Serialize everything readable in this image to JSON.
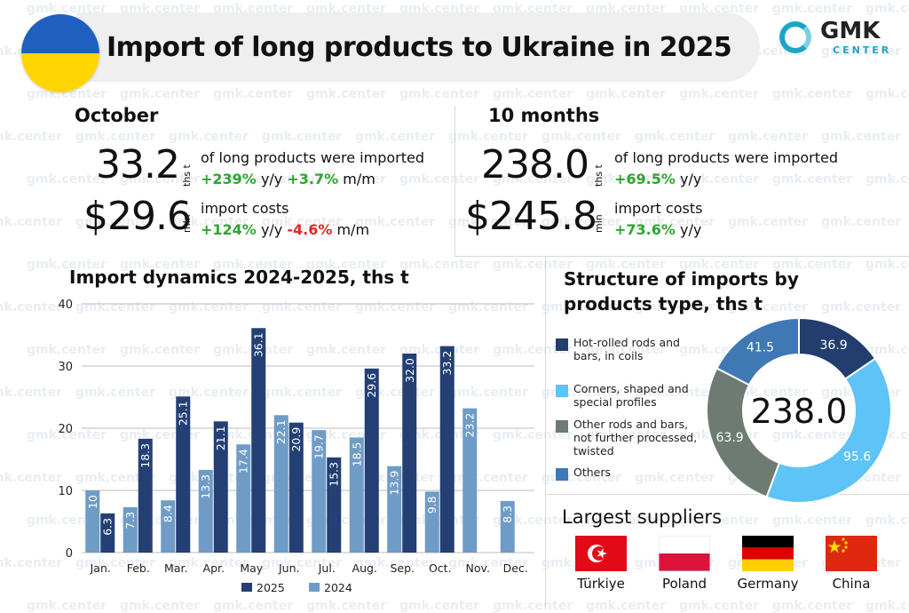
{
  "title": "Import of long products to Ukraine in 2025",
  "logo": {
    "name": "GMK",
    "sub": "CENTER"
  },
  "watermark": "gmk.center",
  "october": {
    "heading": "October",
    "volume": "33.2",
    "volume_unit": "ths t",
    "volume_desc": "of long products were imported",
    "volume_yy": "+239%",
    "volume_mm": "+3.7%",
    "cost": "$29.6",
    "cost_unit": "mln",
    "cost_desc": "import costs",
    "cost_yy": "+124%",
    "cost_mm": "-4.6%",
    "yy_label": "y/y",
    "mm_label": "m/m"
  },
  "ten_months": {
    "heading": "10 months",
    "volume": "238.0",
    "volume_unit": "ths t",
    "volume_desc": "of long products were imported",
    "volume_yy": "+69.5%",
    "cost": "$245.8",
    "cost_unit": "mln",
    "cost_desc": "import costs",
    "cost_yy": "+73.6%",
    "yy_label": "y/y"
  },
  "chart_data": [
    {
      "type": "bar",
      "title": "Import dynamics 2024-2025, ths t",
      "categories": [
        "Jan.",
        "Feb.",
        "Mar.",
        "Apr.",
        "May",
        "Jun.",
        "Jul.",
        "Aug.",
        "Sep.",
        "Oct.",
        "Nov.",
        "Dec."
      ],
      "series": [
        {
          "name": "2024",
          "color": "#6f9cc6",
          "values": [
            10,
            7.3,
            8.4,
            13.3,
            17.4,
            22.1,
            19.7,
            18.5,
            13.9,
            9.8,
            23.2,
            8.3
          ]
        },
        {
          "name": "2025",
          "color": "#233f74",
          "values": [
            6.3,
            18.3,
            25.1,
            21.1,
            36.1,
            20.9,
            15.3,
            29.6,
            32.0,
            33.2,
            null,
            null
          ]
        }
      ],
      "series_order": [
        "2024",
        "2025"
      ],
      "legend_order": [
        "2025",
        "2024"
      ],
      "ylim": [
        0,
        40
      ],
      "yticks": [
        0,
        10,
        20,
        30,
        40
      ],
      "grid": true,
      "legend": "bottom"
    },
    {
      "type": "pie",
      "title": "Structure of imports by products type, ths t",
      "center_label": "238.0",
      "slices": [
        {
          "label": "Hot-rolled rods and bars, in coils",
          "value": 36.9,
          "color": "#223d6e"
        },
        {
          "label": "Corners, shaped and special profiles",
          "value": 95.6,
          "color": "#5ec3f6"
        },
        {
          "label": "Other rods and bars, not further processed, twisted",
          "value": 63.9,
          "color": "#6e7b72"
        },
        {
          "label": "Others",
          "value": 41.5,
          "color": "#3f78b4"
        }
      ],
      "legend": "left"
    }
  ],
  "suppliers": {
    "heading": "Largest suppliers",
    "items": [
      {
        "name": "Türkiye",
        "flag": "turkey-flag"
      },
      {
        "name": "Poland",
        "flag": "poland-flag"
      },
      {
        "name": "Germany",
        "flag": "germany-flag"
      },
      {
        "name": "China",
        "flag": "china-flag"
      }
    ]
  }
}
